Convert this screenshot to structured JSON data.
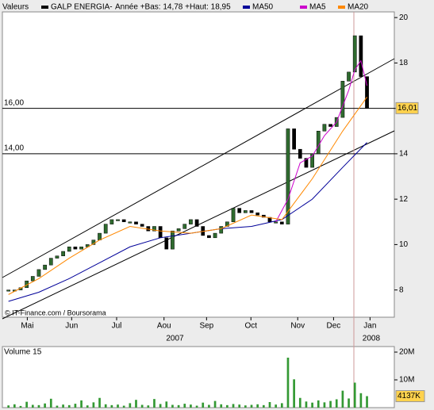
{
  "header": {
    "label": "Valeurs"
  },
  "chart_data": [
    {
      "type": "candlestick",
      "info": "Année +Bas: 14,78 +Haut: 18,95",
      "credit": "© IT-Finance.com / Boursorama",
      "xlim": [
        -1,
        63.5
      ],
      "xticks": [
        {
          "value": 3.1,
          "label": "Mai"
        },
        {
          "value": 10.4,
          "label": "Jun"
        },
        {
          "value": 17.8,
          "label": "Jul"
        },
        {
          "value": 25.6,
          "label": "Aou"
        },
        {
          "value": 32.6,
          "label": "Sep"
        },
        {
          "value": 39.9,
          "label": "Oct"
        },
        {
          "value": 47.6,
          "label": "Nov"
        },
        {
          "value": 53.5,
          "label": "Dec"
        },
        {
          "value": 59.5,
          "label": "Jan"
        }
      ],
      "year_ticks": [
        {
          "value": 27.4,
          "label": "2007"
        },
        {
          "value": 59.7,
          "label": "2008"
        }
      ],
      "ylim": [
        6.8,
        20.25
      ],
      "yticks": [
        8,
        10,
        12,
        14,
        16,
        18,
        20
      ],
      "levels": [
        {
          "value": 16,
          "label": "16,00"
        },
        {
          "value": 14,
          "label": "14,00"
        }
      ],
      "current": {
        "value": 16.01,
        "label": "16,01"
      },
      "series": [
        {
          "name": "GALP ENERGIA-",
          "color": "#2f6b2f",
          "values": [
            8.0,
            8.0,
            8.1,
            8.4,
            8.6,
            8.9,
            9.1,
            9.4,
            9.5,
            9.7,
            9.9,
            9.8,
            9.9,
            10.0,
            10.2,
            10.5,
            10.9,
            11.1,
            11.1,
            11.0,
            11.0,
            10.9,
            10.8,
            10.6,
            10.8,
            10.3,
            9.8,
            10.6,
            10.7,
            10.9,
            11.1,
            10.8,
            10.4,
            10.3,
            10.5,
            10.8,
            11.0,
            11.6,
            11.4,
            11.5,
            11.4,
            11.3,
            11.2,
            11.0,
            11.0,
            10.9,
            15.1,
            14.2,
            13.8,
            13.4,
            14.0,
            15.0,
            15.3,
            15.2,
            15.6,
            17.2,
            17.6,
            19.2,
            17.4,
            16.0
          ]
        },
        {
          "name": "MA50",
          "color": "#000099",
          "x": [
            0,
            5,
            10,
            15,
            20,
            25,
            30,
            35,
            40,
            45,
            50,
            55,
            59
          ],
          "values": [
            7.5,
            7.9,
            8.5,
            9.2,
            9.9,
            10.3,
            10.5,
            10.7,
            10.8,
            11.1,
            12.0,
            13.4,
            14.5
          ]
        },
        {
          "name": "MA5",
          "color": "#cc00cc",
          "x": [
            44,
            46,
            48,
            50,
            52,
            54,
            56,
            57,
            58,
            59
          ],
          "values": [
            11.0,
            12.0,
            13.6,
            13.9,
            14.8,
            15.4,
            16.8,
            17.7,
            18.1,
            17.0
          ]
        },
        {
          "name": "MA20",
          "color": "#ff8800",
          "x": [
            0,
            5,
            10,
            15,
            20,
            25,
            30,
            35,
            40,
            45,
            50,
            55,
            59
          ],
          "values": [
            7.8,
            8.5,
            9.4,
            10.2,
            10.8,
            10.6,
            10.5,
            10.7,
            11.3,
            11.1,
            12.9,
            15.0,
            16.5
          ]
        }
      ]
    },
    {
      "type": "bar",
      "title": "Volume 15",
      "color": "#339933",
      "xlim": [
        -1,
        63.5
      ],
      "ylim": [
        0,
        22
      ],
      "yticks": [
        {
          "value": 10,
          "label": "10M"
        },
        {
          "value": 20,
          "label": "20M"
        }
      ],
      "current": {
        "value": 4.137,
        "label": "4137K"
      },
      "values": [
        0.8,
        1.2,
        0.6,
        2.1,
        1.0,
        0.9,
        1.5,
        3.2,
        0.7,
        1.1,
        0.9,
        1.4,
        2.6,
        0.8,
        1.9,
        3.5,
        1.2,
        0.9,
        1.1,
        0.7,
        1.6,
        2.8,
        1.0,
        0.8,
        3.1,
        1.3,
        2.2,
        1.0,
        0.9,
        1.4,
        1.1,
        0.7,
        1.8,
        1.0,
        2.4,
        1.2,
        0.9,
        1.3,
        1.1,
        0.8,
        1.0,
        1.2,
        0.9,
        2.0,
        1.1,
        1.6,
        18.0,
        10.2,
        3.5,
        2.2,
        1.8,
        2.6,
        1.9,
        2.4,
        3.0,
        6.1,
        3.3,
        9.0,
        5.2,
        4.137
      ]
    }
  ]
}
